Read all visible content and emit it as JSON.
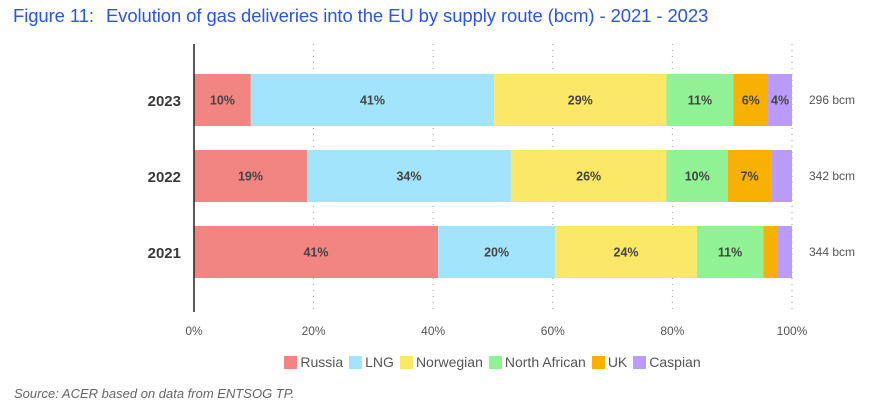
{
  "title": {
    "figure": "Figure 11:",
    "text": "Evolution of gas deliveries into the EU by supply route (bcm) - 2021 - 2023"
  },
  "source": "Source: ACER based on data from ENTSOG TP.",
  "chart_data": {
    "type": "bar",
    "orientation": "horizontal",
    "stacked": true,
    "title": "Evolution of gas deliveries into the EU by supply route (bcm) - 2021 - 2023",
    "xlabel": "",
    "ylabel": "",
    "xlim": [
      0,
      100
    ],
    "x_ticks": [
      "0%",
      "20%",
      "40%",
      "60%",
      "80%",
      "100%"
    ],
    "x_tick_values": [
      0,
      20,
      40,
      60,
      80,
      100
    ],
    "grid": "vertical dotted",
    "legend_position": "bottom",
    "categories": [
      "2023",
      "2022",
      "2021"
    ],
    "totals": [
      "296 bcm",
      "342 bcm",
      "344 bcm"
    ],
    "series": [
      {
        "name": "Russia",
        "color": "#f28482",
        "values": [
          9.5,
          18.9,
          40.8
        ],
        "labels": [
          "10%",
          "19%",
          "41%"
        ]
      },
      {
        "name": "LNG",
        "color": "#a3e4fd",
        "values": [
          40.7,
          34.1,
          19.6
        ],
        "labels": [
          "41%",
          "34%",
          "20%"
        ]
      },
      {
        "name": "Norwegian",
        "color": "#fae765",
        "values": [
          28.8,
          26.0,
          23.7
        ],
        "labels": [
          "29%",
          "26%",
          "24%"
        ]
      },
      {
        "name": "North African",
        "color": "#90f295",
        "values": [
          11.2,
          10.3,
          11.1
        ],
        "labels": [
          "11%",
          "10%",
          "11%"
        ]
      },
      {
        "name": "UK",
        "color": "#f8b002",
        "values": [
          5.8,
          7.2,
          2.3
        ],
        "labels": [
          "6%",
          "7%",
          ""
        ]
      },
      {
        "name": "Caspian",
        "color": "#b99cfa",
        "values": [
          4.0,
          3.5,
          2.5
        ],
        "labels": [
          "4%",
          "",
          ""
        ]
      }
    ]
  }
}
